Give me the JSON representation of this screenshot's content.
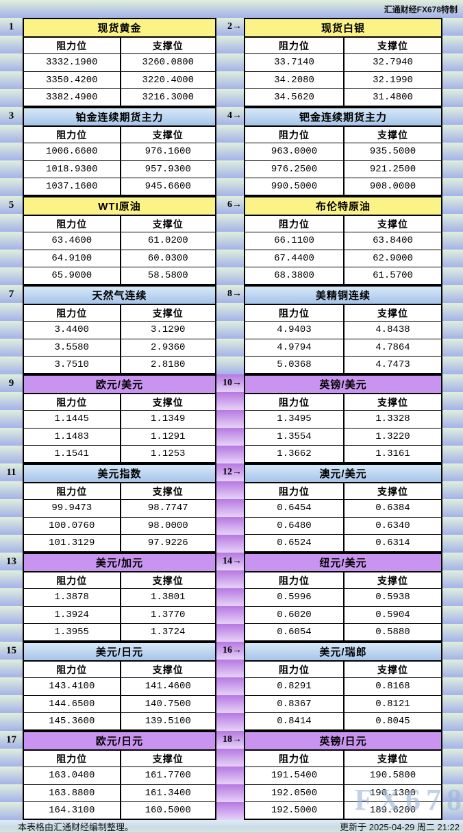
{
  "header": {
    "brand": "汇通财经FX678特制"
  },
  "labels": {
    "resistance": "阻力位",
    "support": "支撑位"
  },
  "footer": {
    "note": "本表格由汇通财经编制整理。",
    "updated": "更新于 2025-04-29 周二 21:22"
  },
  "watermark": "FX678",
  "colors": {
    "yellow_title": "#fcf386",
    "blue_title_top": "#d6e9f8",
    "blue_title_bottom": "#a6c4e9",
    "purple_title": "#c994f0",
    "stripe_green_top": "#e0efdc",
    "stripe_blue_bottom": "#a4b2e9",
    "stripe_purple_top": "#b678e2",
    "stripe_purple_bottom": "#e6d2f8"
  },
  "panels": [
    {
      "num_label": "1",
      "title": "现货黄金",
      "theme": "yellow",
      "resistance": [
        "3332.1900",
        "3350.4200",
        "3382.4900"
      ],
      "support": [
        "3260.0800",
        "3220.4000",
        "3216.3000"
      ]
    },
    {
      "num_label": "2→",
      "title": "现货白银",
      "theme": "yellow",
      "resistance": [
        "33.7140",
        "34.2080",
        "34.5620"
      ],
      "support": [
        "32.7940",
        "32.1990",
        "31.4800"
      ]
    },
    {
      "num_label": "3",
      "title": "铂金连续期货主力",
      "theme": "blue",
      "resistance": [
        "1006.6600",
        "1018.9300",
        "1037.1600"
      ],
      "support": [
        "976.1600",
        "957.9300",
        "945.6600"
      ]
    },
    {
      "num_label": "4→",
      "title": "钯金连续期货主力",
      "theme": "blue",
      "resistance": [
        "963.0000",
        "976.2500",
        "990.5000"
      ],
      "support": [
        "935.5000",
        "921.2500",
        "908.0000"
      ]
    },
    {
      "num_label": "5",
      "title": "WTI原油",
      "theme": "yellow",
      "resistance": [
        "63.4600",
        "64.9100",
        "65.9000"
      ],
      "support": [
        "61.0200",
        "60.0300",
        "58.5800"
      ]
    },
    {
      "num_label": "6→",
      "title": "布伦特原油",
      "theme": "yellow",
      "resistance": [
        "66.1100",
        "67.4400",
        "68.3800"
      ],
      "support": [
        "63.8400",
        "62.9000",
        "61.5700"
      ]
    },
    {
      "num_label": "7",
      "title": "天然气连续",
      "theme": "blue",
      "resistance": [
        "3.4400",
        "3.5580",
        "3.7510"
      ],
      "support": [
        "3.1290",
        "2.9360",
        "2.8180"
      ]
    },
    {
      "num_label": "8→",
      "title": "美精铜连续",
      "theme": "blue",
      "resistance": [
        "4.9403",
        "4.9794",
        "5.0368"
      ],
      "support": [
        "4.8438",
        "4.7864",
        "4.7473"
      ]
    },
    {
      "num_label": "9",
      "title": "欧元/美元",
      "theme": "purple",
      "resistance": [
        "1.1445",
        "1.1483",
        "1.1541"
      ],
      "support": [
        "1.1349",
        "1.1291",
        "1.1253"
      ]
    },
    {
      "num_label": "10→",
      "title": "英镑/美元",
      "theme": "purple",
      "resistance": [
        "1.3495",
        "1.3554",
        "1.3662"
      ],
      "support": [
        "1.3328",
        "1.3220",
        "1.3161"
      ]
    },
    {
      "num_label": "11",
      "title": "美元指数",
      "theme": "blue",
      "resistance": [
        "99.9473",
        "100.0760",
        "101.3129"
      ],
      "support": [
        "98.7747",
        "98.0000",
        "97.9226"
      ]
    },
    {
      "num_label": "12→",
      "title": "澳元/美元",
      "theme": "blue",
      "resistance": [
        "0.6454",
        "0.6480",
        "0.6524"
      ],
      "support": [
        "0.6384",
        "0.6340",
        "0.6314"
      ]
    },
    {
      "num_label": "13",
      "title": "美元/加元",
      "theme": "purple",
      "resistance": [
        "1.3878",
        "1.3924",
        "1.3955"
      ],
      "support": [
        "1.3801",
        "1.3770",
        "1.3724"
      ]
    },
    {
      "num_label": "14→",
      "title": "纽元/美元",
      "theme": "purple",
      "resistance": [
        "0.5996",
        "0.6020",
        "0.6054"
      ],
      "support": [
        "0.5938",
        "0.5904",
        "0.5880"
      ]
    },
    {
      "num_label": "15",
      "title": "美元/日元",
      "theme": "blue",
      "resistance": [
        "143.4100",
        "144.6500",
        "145.3600"
      ],
      "support": [
        "141.4600",
        "140.7500",
        "139.5100"
      ]
    },
    {
      "num_label": "16→",
      "title": "美元/瑞郎",
      "theme": "blue",
      "resistance": [
        "0.8291",
        "0.8367",
        "0.8414"
      ],
      "support": [
        "0.8168",
        "0.8121",
        "0.8045"
      ]
    },
    {
      "num_label": "17",
      "title": "欧元/日元",
      "theme": "purple",
      "resistance": [
        "163.0400",
        "163.8800",
        "164.3100"
      ],
      "support": [
        "161.7700",
        "161.3400",
        "160.5000"
      ]
    },
    {
      "num_label": "18→",
      "title": "英镑/日元",
      "theme": "purple",
      "resistance": [
        "191.5400",
        "192.0500",
        "192.5000"
      ],
      "support": [
        "190.5800",
        "190.1300",
        "189.6200"
      ]
    }
  ]
}
